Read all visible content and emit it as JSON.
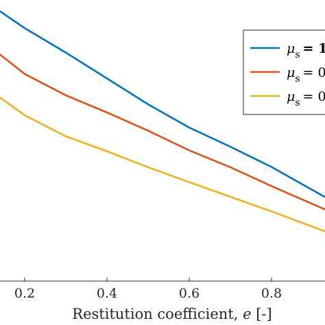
{
  "chart_data": {
    "type": "line",
    "xlabel": "Restitution coefficient, e [-]",
    "xlabel_prefix": "Restitution coefficient, ",
    "xlabel_var": "e",
    "xlabel_unit": " [-]",
    "xlim": [
      0.14,
      0.93
    ],
    "ylim": [
      0,
      1
    ],
    "x_ticks": [
      0.2,
      0.4,
      0.6,
      0.8
    ],
    "x_tick_labels": [
      "0.2",
      "0.4",
      "0.6",
      "0.8"
    ],
    "grid": false,
    "legend_position": "top-right",
    "series": [
      {
        "name": "μ_s = 1",
        "legend_symbol": "μ",
        "legend_sub": "s",
        "legend_value": "= 1",
        "color": "#0072BD",
        "x": [
          0.14,
          0.2,
          0.3,
          0.4,
          0.5,
          0.6,
          0.7,
          0.8,
          0.93
        ],
        "y": [
          0.96,
          0.9,
          0.813,
          0.721,
          0.629,
          0.546,
          0.478,
          0.406,
          0.299
        ]
      },
      {
        "name": "μ_s = 0",
        "legend_symbol": "μ",
        "legend_sub": "s",
        "legend_value": "= 0",
        "color": "#D95319",
        "x": [
          0.14,
          0.2,
          0.3,
          0.4,
          0.5,
          0.6,
          0.7,
          0.8,
          0.93
        ],
        "y": [
          0.806,
          0.737,
          0.661,
          0.6,
          0.535,
          0.465,
          0.405,
          0.338,
          0.255
        ]
      },
      {
        "name": "μ_s = 0",
        "legend_symbol": "μ",
        "legend_sub": "s",
        "legend_value": "= 0",
        "color": "#EDB120",
        "x": [
          0.14,
          0.2,
          0.3,
          0.4,
          0.5,
          0.6,
          0.7,
          0.8,
          0.93
        ],
        "y": [
          0.653,
          0.59,
          0.515,
          0.462,
          0.405,
          0.352,
          0.3,
          0.248,
          0.177
        ]
      }
    ]
  }
}
